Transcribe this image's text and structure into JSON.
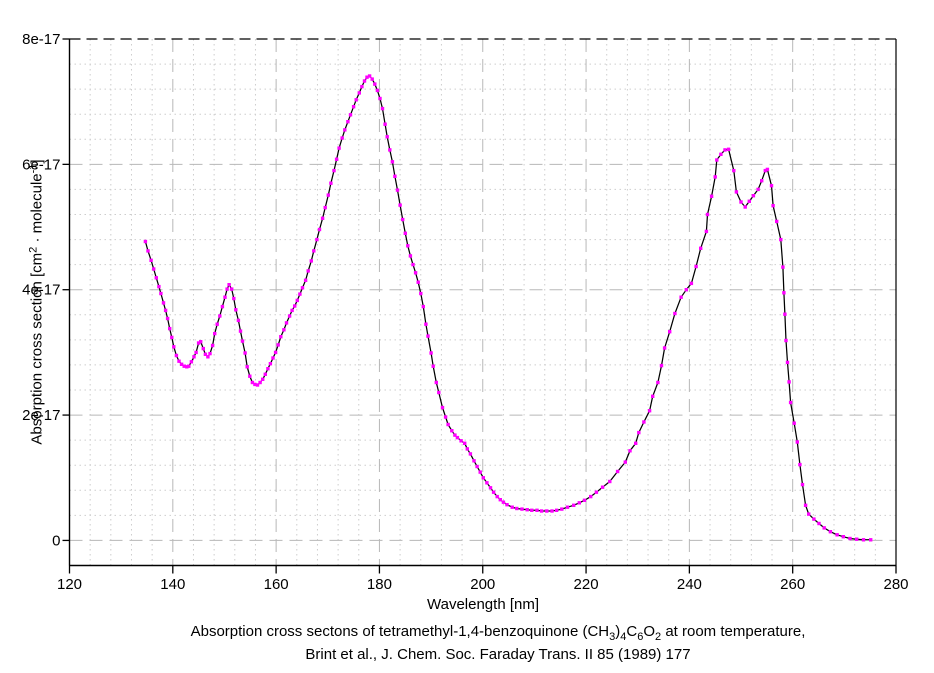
{
  "chart_data": {
    "type": "line",
    "xlabel": "Wavelength [nm]",
    "ylabel_parts": [
      {
        "t": "Absorption cross section [cm"
      },
      {
        "t": "2",
        "sup": true
      },
      {
        "t": " · molecule"
      },
      {
        "t": "-1",
        "sup": true
      },
      {
        "t": "]"
      }
    ],
    "caption_line1_parts": [
      {
        "t": "Absorption cross sectons of tetramethyl-1,4-benzoquinone (CH"
      },
      {
        "t": "3",
        "sub": true
      },
      {
        "t": ")"
      },
      {
        "t": "4",
        "sub": true
      },
      {
        "t": "C"
      },
      {
        "t": "6",
        "sub": true
      },
      {
        "t": "O"
      },
      {
        "t": "2",
        "sub": true
      },
      {
        "t": " at room temperature,"
      }
    ],
    "caption_line2": "Brint et al., J. Chem. Soc. Faraday Trans. II 85 (1989) 177",
    "xlim": [
      120,
      280
    ],
    "ylim": [
      -0.4,
      8
    ],
    "y_unit_scale": "values in 1e-17 cm^2 / molecule",
    "x_ticks": {
      "values": [
        120,
        140,
        160,
        180,
        200,
        220,
        240,
        260,
        280
      ],
      "labels": [
        "120",
        "140",
        "160",
        "180",
        "200",
        "220",
        "240",
        "260",
        "280"
      ]
    },
    "y_ticks": {
      "values": [
        0,
        2,
        4,
        6,
        8
      ],
      "labels": [
        "0",
        "2e-17",
        "4e-17",
        "6e-17",
        "8e-17"
      ]
    },
    "x_minor_step": 4,
    "y_minor_step": 0.4,
    "grid": true,
    "legend_position": "none",
    "colors": {
      "line": "#000000",
      "marker": "#ff00ff",
      "major_grid": "#b8b8b8",
      "minor_grid": "#cdcdcd",
      "axis": "#000000",
      "background": "#ffffff"
    },
    "series": [
      {
        "name": "absorption cross section",
        "points": [
          [
            134.7,
            4.77
          ],
          [
            135.2,
            4.62
          ],
          [
            135.8,
            4.47
          ],
          [
            136.3,
            4.33
          ],
          [
            136.8,
            4.19
          ],
          [
            137.3,
            4.05
          ],
          [
            137.7,
            3.94
          ],
          [
            138.2,
            3.79
          ],
          [
            138.6,
            3.67
          ],
          [
            139.0,
            3.54
          ],
          [
            139.4,
            3.38
          ],
          [
            139.8,
            3.24
          ],
          [
            140.2,
            3.09
          ],
          [
            140.7,
            2.95
          ],
          [
            141.2,
            2.86
          ],
          [
            141.7,
            2.81
          ],
          [
            142.2,
            2.78
          ],
          [
            142.7,
            2.77
          ],
          [
            143.1,
            2.78
          ],
          [
            143.6,
            2.85
          ],
          [
            144.1,
            2.93
          ],
          [
            144.5,
            3.0
          ],
          [
            145.0,
            3.15
          ],
          [
            145.4,
            3.17
          ],
          [
            145.9,
            3.06
          ],
          [
            146.3,
            2.97
          ],
          [
            146.8,
            2.93
          ],
          [
            147.2,
            2.98
          ],
          [
            147.7,
            3.11
          ],
          [
            148.1,
            3.3
          ],
          [
            148.6,
            3.45
          ],
          [
            149.1,
            3.58
          ],
          [
            149.6,
            3.73
          ],
          [
            150.1,
            3.88
          ],
          [
            150.5,
            4.01
          ],
          [
            150.9,
            4.08
          ],
          [
            151.4,
            4.01
          ],
          [
            151.8,
            3.86
          ],
          [
            152.2,
            3.68
          ],
          [
            152.7,
            3.51
          ],
          [
            153.1,
            3.34
          ],
          [
            153.5,
            3.18
          ],
          [
            154.0,
            2.99
          ],
          [
            154.4,
            2.77
          ],
          [
            154.9,
            2.62
          ],
          [
            155.4,
            2.52
          ],
          [
            155.9,
            2.49
          ],
          [
            156.4,
            2.48
          ],
          [
            156.9,
            2.52
          ],
          [
            157.4,
            2.57
          ],
          [
            157.9,
            2.65
          ],
          [
            158.4,
            2.74
          ],
          [
            158.9,
            2.82
          ],
          [
            159.4,
            2.91
          ],
          [
            159.9,
            3.0
          ],
          [
            160.4,
            3.12
          ],
          [
            160.9,
            3.25
          ],
          [
            161.5,
            3.36
          ],
          [
            162.0,
            3.47
          ],
          [
            162.6,
            3.58
          ],
          [
            163.1,
            3.67
          ],
          [
            163.6,
            3.74
          ],
          [
            164.1,
            3.83
          ],
          [
            164.6,
            3.93
          ],
          [
            165.1,
            4.03
          ],
          [
            165.7,
            4.15
          ],
          [
            166.2,
            4.3
          ],
          [
            166.8,
            4.46
          ],
          [
            167.3,
            4.62
          ],
          [
            167.9,
            4.8
          ],
          [
            168.4,
            4.96
          ],
          [
            169.0,
            5.14
          ],
          [
            169.5,
            5.31
          ],
          [
            170.1,
            5.51
          ],
          [
            170.6,
            5.7
          ],
          [
            171.2,
            5.9
          ],
          [
            171.7,
            6.08
          ],
          [
            172.2,
            6.26
          ],
          [
            172.8,
            6.42
          ],
          [
            173.3,
            6.55
          ],
          [
            173.9,
            6.68
          ],
          [
            174.4,
            6.79
          ],
          [
            175.0,
            6.92
          ],
          [
            175.5,
            7.03
          ],
          [
            176.1,
            7.14
          ],
          [
            176.6,
            7.24
          ],
          [
            177.1,
            7.33
          ],
          [
            177.6,
            7.39
          ],
          [
            178.1,
            7.41
          ],
          [
            178.6,
            7.36
          ],
          [
            179.1,
            7.28
          ],
          [
            179.6,
            7.18
          ],
          [
            180.1,
            7.05
          ],
          [
            180.6,
            6.89
          ],
          [
            181.1,
            6.64
          ],
          [
            181.5,
            6.44
          ],
          [
            182.0,
            6.23
          ],
          [
            182.5,
            6.04
          ],
          [
            183.0,
            5.81
          ],
          [
            183.5,
            5.59
          ],
          [
            184.0,
            5.35
          ],
          [
            184.5,
            5.12
          ],
          [
            185.0,
            4.9
          ],
          [
            185.5,
            4.7
          ],
          [
            186.0,
            4.54
          ],
          [
            186.5,
            4.4
          ],
          [
            187.0,
            4.27
          ],
          [
            187.5,
            4.12
          ],
          [
            188.0,
            3.94
          ],
          [
            188.5,
            3.73
          ],
          [
            189.0,
            3.45
          ],
          [
            189.4,
            3.26
          ],
          [
            190.0,
            2.99
          ],
          [
            190.4,
            2.78
          ],
          [
            191.0,
            2.52
          ],
          [
            191.5,
            2.36
          ],
          [
            192.2,
            2.12
          ],
          [
            192.8,
            1.97
          ],
          [
            193.3,
            1.85
          ],
          [
            194.0,
            1.75
          ],
          [
            194.6,
            1.68
          ],
          [
            195.1,
            1.64
          ],
          [
            195.8,
            1.59
          ],
          [
            196.5,
            1.55
          ],
          [
            197.0,
            1.46
          ],
          [
            197.6,
            1.38
          ],
          [
            198.3,
            1.27
          ],
          [
            198.9,
            1.18
          ],
          [
            199.5,
            1.09
          ],
          [
            200.1,
            1.0
          ],
          [
            200.8,
            0.92
          ],
          [
            201.5,
            0.84
          ],
          [
            202.1,
            0.77
          ],
          [
            202.8,
            0.7
          ],
          [
            203.4,
            0.65
          ],
          [
            204.0,
            0.61
          ],
          [
            204.7,
            0.57
          ],
          [
            205.7,
            0.53
          ],
          [
            206.6,
            0.51
          ],
          [
            207.6,
            0.5
          ],
          [
            208.6,
            0.49
          ],
          [
            209.5,
            0.48
          ],
          [
            210.5,
            0.48
          ],
          [
            211.4,
            0.47
          ],
          [
            212.4,
            0.47
          ],
          [
            213.4,
            0.47
          ],
          [
            214.3,
            0.48
          ],
          [
            215.3,
            0.5
          ],
          [
            216.4,
            0.53
          ],
          [
            217.6,
            0.56
          ],
          [
            218.7,
            0.6
          ],
          [
            219.7,
            0.64
          ],
          [
            220.9,
            0.7
          ],
          [
            222.0,
            0.77
          ],
          [
            223.2,
            0.85
          ],
          [
            224.6,
            0.94
          ],
          [
            226.1,
            1.1
          ],
          [
            227.6,
            1.25
          ],
          [
            228.5,
            1.43
          ],
          [
            229.6,
            1.55
          ],
          [
            230.2,
            1.72
          ],
          [
            231.2,
            1.89
          ],
          [
            232.3,
            2.07
          ],
          [
            232.9,
            2.3
          ],
          [
            233.9,
            2.52
          ],
          [
            234.6,
            2.79
          ],
          [
            235.2,
            3.07
          ],
          [
            236.2,
            3.33
          ],
          [
            237.2,
            3.62
          ],
          [
            238.4,
            3.88
          ],
          [
            239.4,
            4.0
          ],
          [
            240.4,
            4.1
          ],
          [
            241.3,
            4.37
          ],
          [
            242.2,
            4.66
          ],
          [
            243.3,
            4.93
          ],
          [
            243.5,
            5.2
          ],
          [
            244.3,
            5.49
          ],
          [
            245.0,
            5.8
          ],
          [
            245.3,
            6.07
          ],
          [
            246.1,
            6.16
          ],
          [
            246.9,
            6.23
          ],
          [
            247.6,
            6.24
          ],
          [
            248.6,
            5.9
          ],
          [
            249.1,
            5.56
          ],
          [
            250.0,
            5.4
          ],
          [
            250.8,
            5.32
          ],
          [
            251.6,
            5.41
          ],
          [
            252.4,
            5.5
          ],
          [
            253.3,
            5.6
          ],
          [
            254.0,
            5.74
          ],
          [
            254.7,
            5.9
          ],
          [
            255.1,
            5.92
          ],
          [
            255.9,
            5.66
          ],
          [
            256.2,
            5.34
          ],
          [
            256.9,
            5.09
          ],
          [
            257.7,
            4.8
          ],
          [
            258.1,
            4.36
          ],
          [
            258.3,
            3.95
          ],
          [
            258.5,
            3.61
          ],
          [
            258.7,
            3.19
          ],
          [
            259.0,
            2.84
          ],
          [
            259.3,
            2.53
          ],
          [
            259.6,
            2.2
          ],
          [
            260.3,
            1.87
          ],
          [
            260.9,
            1.57
          ],
          [
            261.4,
            1.21
          ],
          [
            261.9,
            0.89
          ],
          [
            262.5,
            0.56
          ],
          [
            263.1,
            0.42
          ],
          [
            264.1,
            0.34
          ],
          [
            265.1,
            0.27
          ],
          [
            266.1,
            0.2
          ],
          [
            267.3,
            0.14
          ],
          [
            268.6,
            0.09
          ],
          [
            269.8,
            0.06
          ],
          [
            271.1,
            0.03
          ],
          [
            272.4,
            0.02
          ],
          [
            273.7,
            0.01
          ],
          [
            275.1,
            0.01
          ]
        ]
      }
    ]
  }
}
